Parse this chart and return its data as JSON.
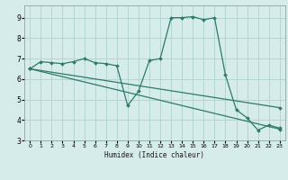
{
  "xlabel": "Humidex (Indice chaleur)",
  "background_color": "#d5ecea",
  "grid_color": "#b5d5d2",
  "line_color": "#2d7a6a",
  "xlim": [
    -0.5,
    23.5
  ],
  "ylim": [
    3,
    9.6
  ],
  "yticks": [
    3,
    4,
    5,
    6,
    7,
    8,
    9
  ],
  "xticks": [
    0,
    1,
    2,
    3,
    4,
    5,
    6,
    7,
    8,
    9,
    10,
    11,
    12,
    13,
    14,
    15,
    16,
    17,
    18,
    19,
    20,
    21,
    22,
    23
  ],
  "series": [
    {
      "x": [
        0,
        1,
        2,
        3,
        4,
        5,
        6,
        7,
        8,
        9,
        10,
        11,
        12,
        13,
        14,
        15,
        16,
        17,
        18,
        19,
        20,
        21,
        22,
        23
      ],
      "y": [
        6.5,
        6.85,
        6.8,
        6.75,
        6.85,
        7.0,
        6.8,
        6.75,
        6.65,
        4.7,
        5.4,
        6.9,
        7.0,
        9.0,
        9.0,
        9.05,
        8.9,
        9.0,
        6.2,
        4.5,
        4.1,
        3.5,
        3.75,
        3.6
      ]
    },
    {
      "x": [
        0,
        23
      ],
      "y": [
        6.5,
        3.55
      ]
    },
    {
      "x": [
        0,
        23
      ],
      "y": [
        6.5,
        4.6
      ]
    }
  ]
}
